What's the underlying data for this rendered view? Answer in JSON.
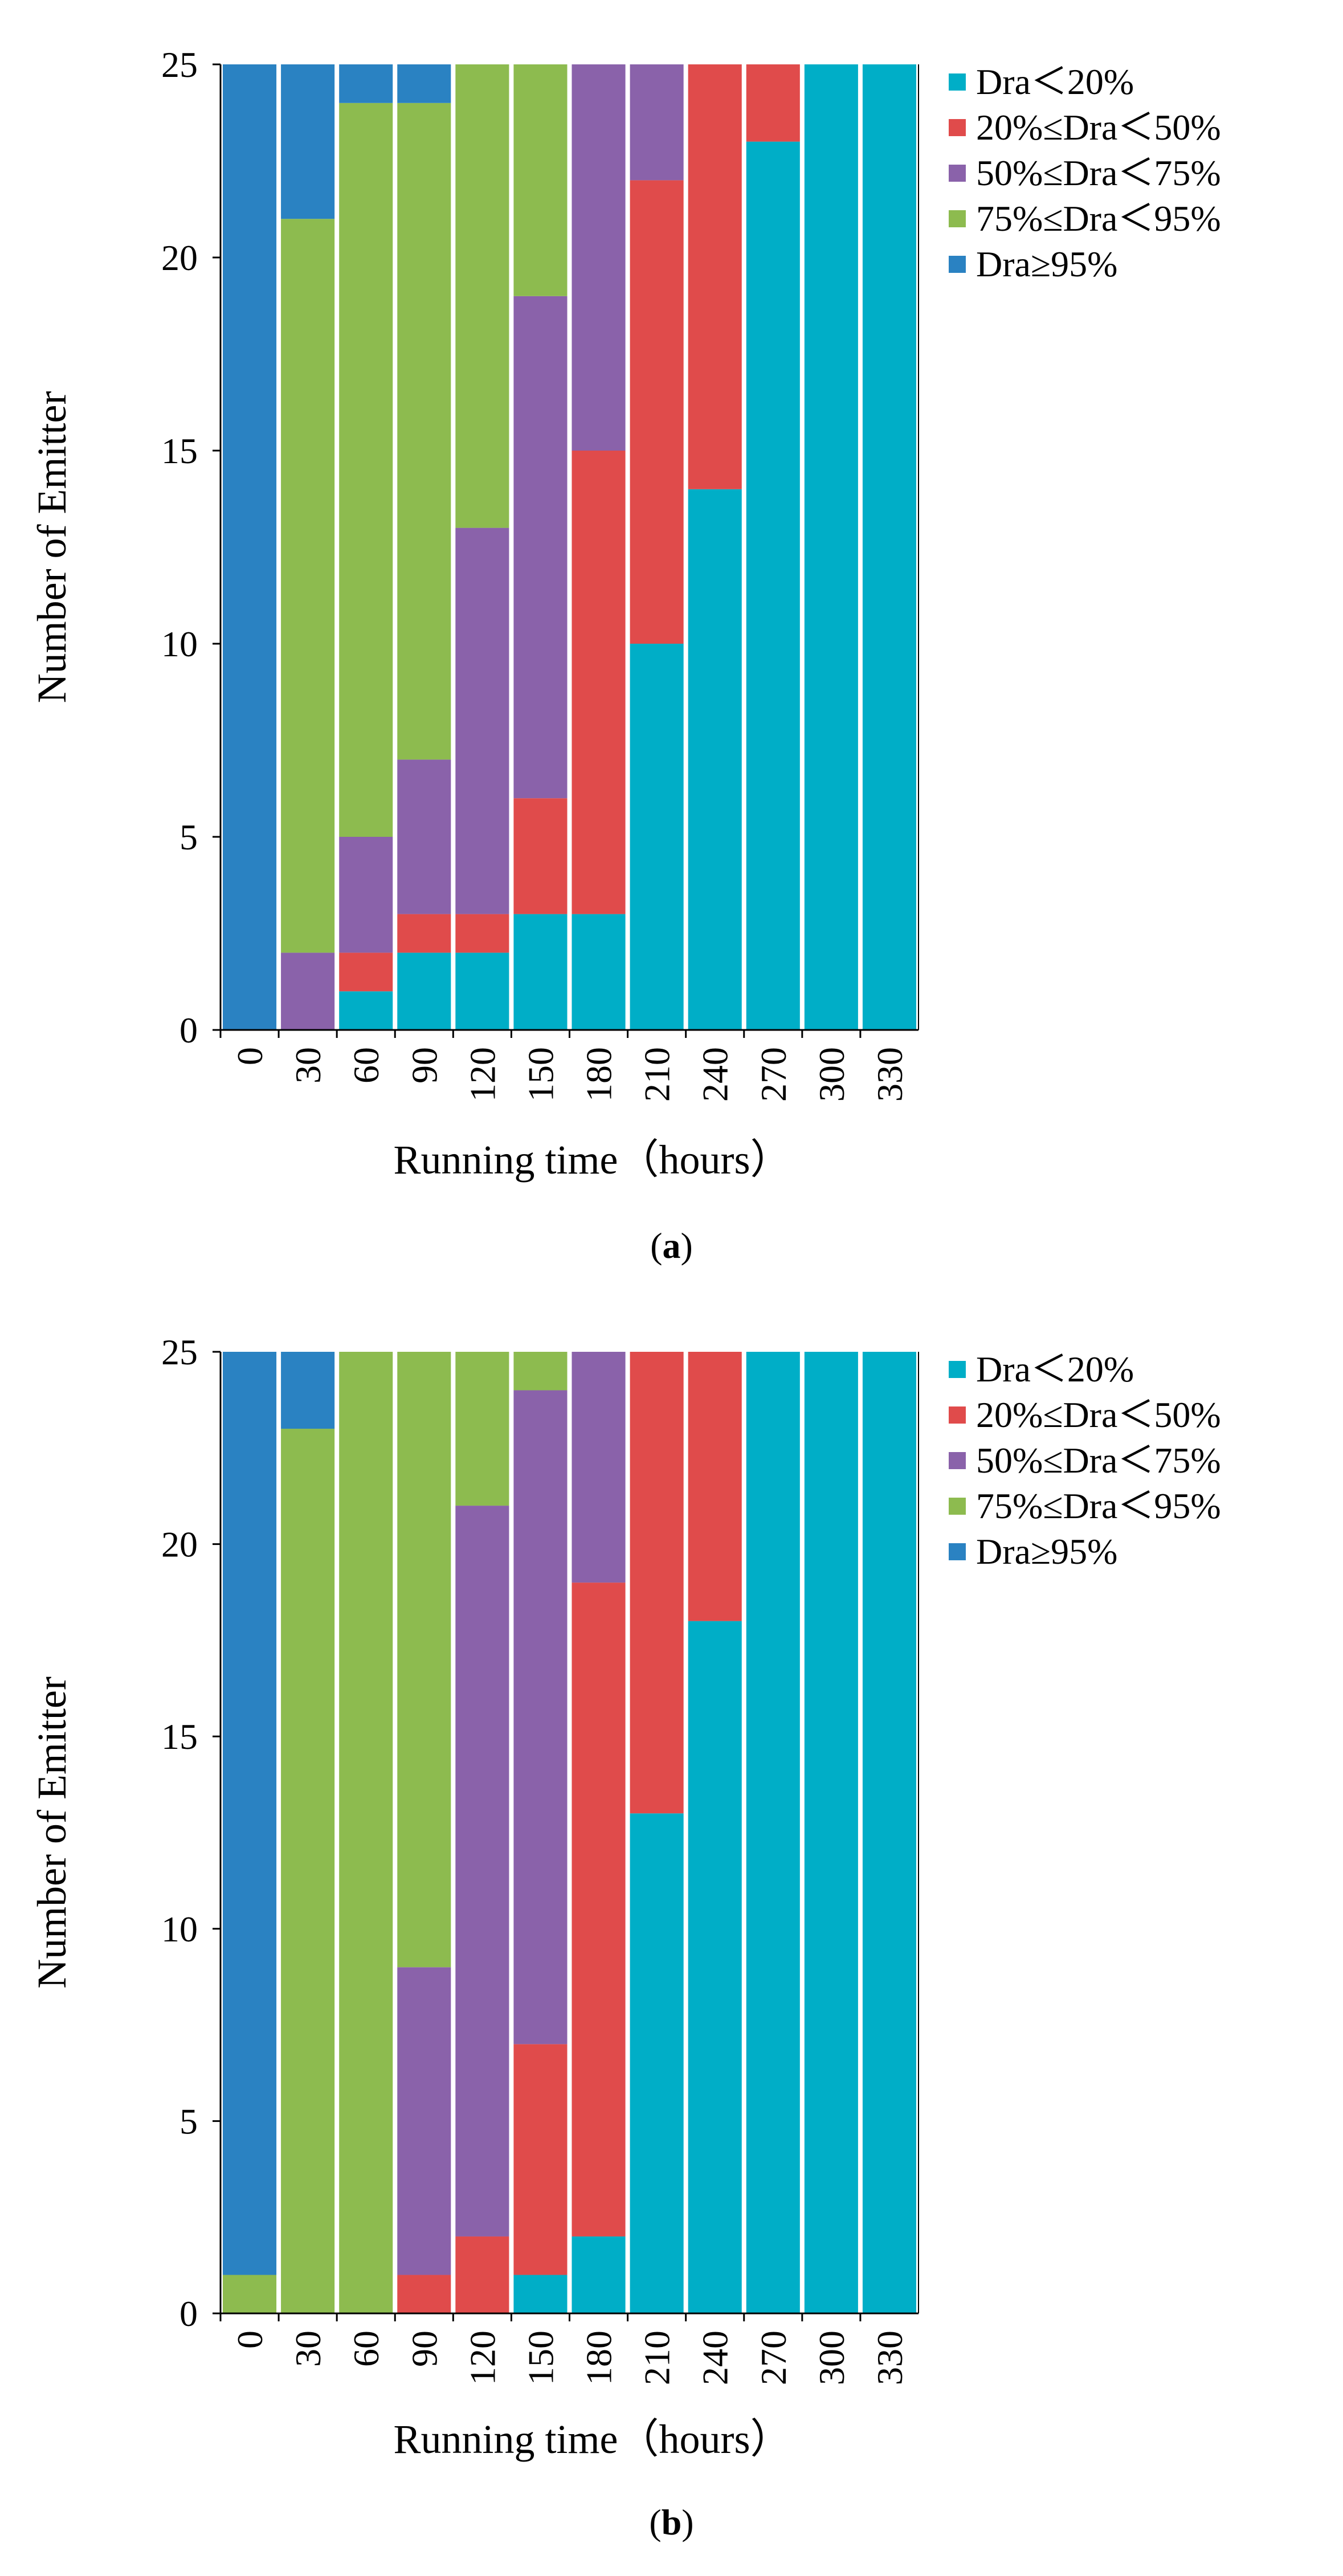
{
  "chart_data": [
    {
      "type": "bar",
      "stacked": true,
      "caption_open": "(",
      "caption_letter": "a",
      "caption_close": ")",
      "categories": [
        "0",
        "30",
        "60",
        "90",
        "120",
        "150",
        "180",
        "210",
        "240",
        "270",
        "300",
        "330"
      ],
      "series": [
        {
          "name": "Dra＜20%",
          "color": "#00AEC7",
          "values": [
            0,
            0,
            1,
            2,
            2,
            3,
            3,
            10,
            14,
            23,
            25,
            25
          ]
        },
        {
          "name": "20%≤Dra＜50%",
          "color": "#E04B4B",
          "values": [
            0,
            0,
            1,
            1,
            1,
            3,
            12,
            12,
            11,
            2,
            0,
            0
          ]
        },
        {
          "name": "50%≤Dra＜75%",
          "color": "#8A62AA",
          "values": [
            0,
            2,
            3,
            4,
            10,
            13,
            10,
            3,
            0,
            0,
            0,
            0
          ]
        },
        {
          "name": "75%≤Dra＜95%",
          "color": "#8DBB4F",
          "values": [
            0,
            19,
            19,
            17,
            12,
            6,
            0,
            0,
            0,
            0,
            0,
            0
          ]
        },
        {
          "name": "Dra≥95%",
          "color": "#2A82C2",
          "values": [
            25,
            4,
            1,
            1,
            0,
            0,
            0,
            0,
            0,
            0,
            0,
            0
          ]
        }
      ],
      "xlabel": "Running time（hours）",
      "ylabel": "Number of Emitter",
      "ylim": [
        0,
        25
      ],
      "yticks": [
        "0",
        "5",
        "10",
        "15",
        "20",
        "25"
      ],
      "legend_position": "top-right"
    },
    {
      "type": "bar",
      "stacked": true,
      "caption_open": "(",
      "caption_letter": "b",
      "caption_close": ")",
      "categories": [
        "0",
        "30",
        "60",
        "90",
        "120",
        "150",
        "180",
        "210",
        "240",
        "270",
        "300",
        "330"
      ],
      "series": [
        {
          "name": "Dra＜20%",
          "color": "#00AEC7",
          "values": [
            0,
            0,
            0,
            0,
            0,
            1,
            2,
            13,
            18,
            25,
            25,
            25
          ]
        },
        {
          "name": "20%≤Dra＜50%",
          "color": "#E04B4B",
          "values": [
            0,
            0,
            0,
            1,
            2,
            6,
            17,
            12,
            7,
            0,
            0,
            0
          ]
        },
        {
          "name": "50%≤Dra＜75%",
          "color": "#8A62AA",
          "values": [
            0,
            0,
            0,
            8,
            19,
            17,
            6,
            0,
            0,
            0,
            0,
            0
          ]
        },
        {
          "name": "75%≤Dra＜95%",
          "color": "#8DBB4F",
          "values": [
            1,
            23,
            25,
            16,
            4,
            1,
            0,
            0,
            0,
            0,
            0,
            0
          ]
        },
        {
          "name": "Dra≥95%",
          "color": "#2A82C2",
          "values": [
            24,
            2,
            0,
            0,
            0,
            0,
            0,
            0,
            0,
            0,
            0,
            0
          ]
        }
      ],
      "xlabel": "Running time（hours）",
      "ylabel": "Number of Emitter",
      "ylim": [
        0,
        25
      ],
      "yticks": [
        "0",
        "5",
        "10",
        "15",
        "20",
        "25"
      ],
      "legend_position": "top-right"
    }
  ]
}
